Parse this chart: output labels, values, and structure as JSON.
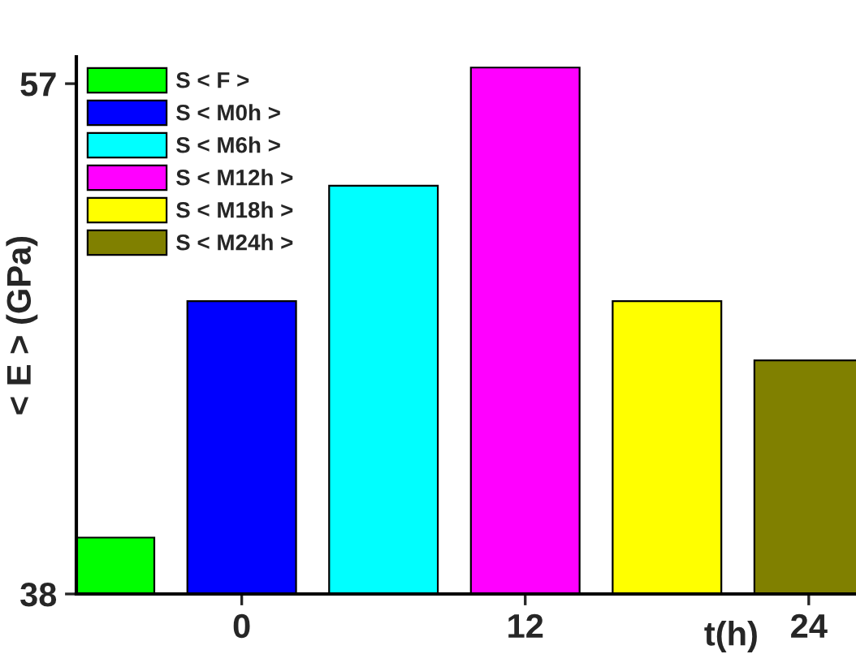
{
  "chart_data": {
    "type": "bar",
    "xlabel": "t(h)",
    "ylabel": "< E > (GPa)",
    "xlim": [
      -7,
      26
    ],
    "xticks": [
      0,
      12,
      24
    ],
    "ylim": [
      38,
      58
    ],
    "yticks": [
      38,
      57
    ],
    "legend": "top left",
    "grid": false,
    "series": [
      {
        "name": "S < F >",
        "color": "#00ff00",
        "x": [
          -6
        ],
        "values": [
          40.1
        ]
      },
      {
        "name": "S < M0h >",
        "color": "#0000ff",
        "x": [
          0
        ],
        "values": [
          48.9
        ]
      },
      {
        "name": "S < M6h >",
        "color": "#00ffff",
        "x": [
          6
        ],
        "values": [
          53.2
        ]
      },
      {
        "name": "S < M12h >",
        "color": "#ff00ff",
        "x": [
          12
        ],
        "values": [
          57.6
        ]
      },
      {
        "name": "S < M18h >",
        "color": "#ffff00",
        "x": [
          18
        ],
        "values": [
          48.9
        ]
      },
      {
        "name": "S < M24h >",
        "color": "#808000",
        "x": [
          24
        ],
        "values": [
          46.7
        ]
      }
    ]
  }
}
